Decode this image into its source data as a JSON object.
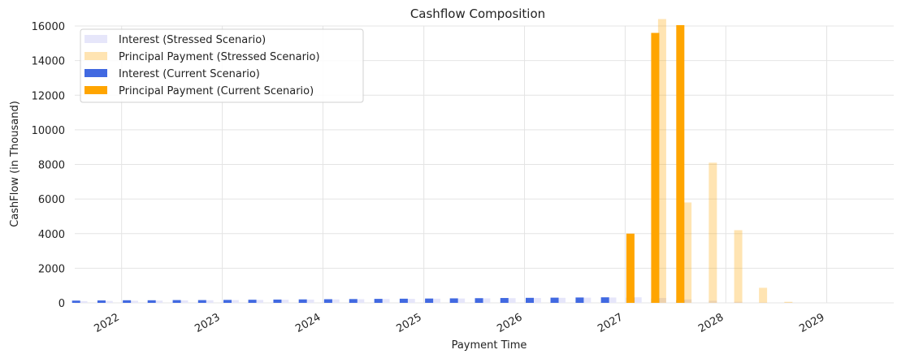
{
  "chart_data": {
    "type": "bar",
    "title": "Cashflow Composition",
    "xlabel": "Payment Time",
    "ylabel": "CashFlow (in Thousand)",
    "ylim": [
      0,
      16000
    ],
    "yticks": [
      0,
      2000,
      4000,
      6000,
      8000,
      10000,
      12000,
      14000,
      16000
    ],
    "ytick_labels": [
      "0",
      "2000",
      "4000",
      "6000",
      "8000",
      "10000",
      "12000",
      "14000",
      "16000"
    ],
    "xlim": [
      "2021-07-15",
      "2029-09-01"
    ],
    "xticks": [
      "2022-01-01",
      "2023-01-01",
      "2024-01-01",
      "2025-01-01",
      "2026-01-01",
      "2027-01-01",
      "2028-01-01",
      "2029-01-01"
    ],
    "xtick_labels": [
      "2022",
      "2023",
      "2024",
      "2025",
      "2026",
      "2027",
      "2028",
      "2029"
    ],
    "grid": true,
    "legend_position": "top-left",
    "series": [
      {
        "name": "Interest (Stressed Scenario)",
        "color": "#e6e6fa",
        "opacity": 1.0,
        "x": [
          "2021-08-15",
          "2021-11-15",
          "2022-02-15",
          "2022-05-15",
          "2022-08-15",
          "2022-11-15",
          "2023-02-15",
          "2023-05-15",
          "2023-08-15",
          "2023-11-15",
          "2024-02-15",
          "2024-05-15",
          "2024-08-15",
          "2024-11-15",
          "2025-02-15",
          "2025-05-15",
          "2025-08-15",
          "2025-11-15",
          "2026-02-15",
          "2026-05-15",
          "2026-08-15",
          "2026-11-15",
          "2027-02-15",
          "2027-05-15",
          "2027-08-15",
          "2027-11-15",
          "2028-02-15",
          "2028-05-15",
          "2028-08-15"
        ],
        "values": [
          100,
          110,
          120,
          130,
          140,
          150,
          160,
          170,
          180,
          190,
          200,
          210,
          220,
          230,
          240,
          250,
          260,
          270,
          280,
          290,
          300,
          310,
          320,
          280,
          200,
          120,
          60,
          20,
          5
        ]
      },
      {
        "name": "Principal Payment (Stressed Scenario)",
        "color": "#ffa500",
        "opacity": 0.3,
        "x": [
          "2027-05-15",
          "2027-08-15",
          "2027-11-15",
          "2028-02-15",
          "2028-05-15",
          "2028-08-15"
        ],
        "values": [
          16400,
          5800,
          8100,
          4200,
          870,
          60
        ]
      },
      {
        "name": "Interest (Current Scenario)",
        "color": "#4169e1",
        "opacity": 1.0,
        "x": [
          "2021-07-20",
          "2021-10-20",
          "2022-01-20",
          "2022-04-20",
          "2022-07-20",
          "2022-10-20",
          "2023-01-20",
          "2023-04-20",
          "2023-07-20",
          "2023-10-20",
          "2024-01-20",
          "2024-04-20",
          "2024-07-20",
          "2024-10-20",
          "2025-01-20",
          "2025-04-20",
          "2025-07-20",
          "2025-10-20",
          "2026-01-20",
          "2026-04-20",
          "2026-07-20",
          "2026-10-20",
          "2027-01-20",
          "2027-04-20",
          "2027-07-20"
        ],
        "values": [
          130,
          140,
          150,
          150,
          160,
          160,
          170,
          180,
          190,
          200,
          210,
          220,
          230,
          240,
          250,
          260,
          270,
          280,
          290,
          300,
          310,
          320,
          300,
          250,
          150
        ]
      },
      {
        "name": "Principal Payment (Current Scenario)",
        "color": "#ffa500",
        "opacity": 1.0,
        "x": [
          "2027-01-20",
          "2027-04-20",
          "2027-07-20"
        ],
        "values": [
          4000,
          15600,
          16050
        ]
      }
    ]
  }
}
